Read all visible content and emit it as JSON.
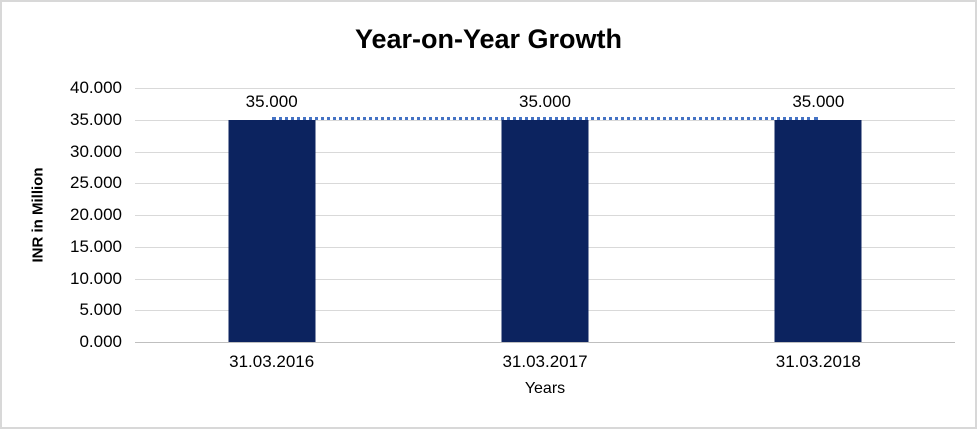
{
  "chart_data": {
    "type": "bar",
    "title": "Year-on-Year Growth",
    "xlabel": "Years",
    "ylabel": "INR in Million",
    "categories": [
      "31.03.2016",
      "31.03.2017",
      "31.03.2018"
    ],
    "series": [
      {
        "name": "INR in Million",
        "type": "bar",
        "values": [
          35000,
          35000,
          35000
        ]
      },
      {
        "name": "trend",
        "type": "line",
        "style": "dotted",
        "values": [
          35000,
          35000,
          35000
        ]
      }
    ],
    "values": [
      35000,
      35000,
      35000
    ],
    "data_labels": [
      "35.000",
      "35.000",
      "35.000"
    ],
    "ylim": [
      0,
      40000
    ],
    "ytick_step": 5000,
    "ytick_labels": [
      "40.000",
      "35.000",
      "30.000",
      "25.000",
      "20.000",
      "15.000",
      "10.000",
      "5.000",
      "0.000"
    ],
    "grid": true,
    "legend": false,
    "colors": {
      "bar": "#0C235F",
      "line": "#4472C4",
      "grid": "#D9D9D9",
      "axis": "#BFBFBF",
      "border": "#D8D8D8"
    }
  }
}
